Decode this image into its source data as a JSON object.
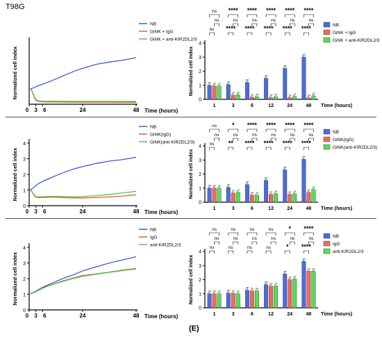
{
  "figure": {
    "cell_line_label": "T98G",
    "panel_label": "(E)"
  },
  "chart_data": [
    {
      "type": "line",
      "ylabel": "Normalized cell index",
      "xlabel": "Time (hours)",
      "xticks": [
        "0",
        "3",
        "6",
        "24",
        "48"
      ],
      "xlim": [
        0,
        48
      ],
      "ylim": [
        0,
        4
      ],
      "yticks": [],
      "series": [
        {
          "name": "NB",
          "color": "#3b5bd6",
          "x": [
            0,
            1,
            2,
            3,
            4,
            6,
            10,
            15,
            20,
            24,
            30,
            36,
            42,
            48
          ],
          "y": [
            1.0,
            1.0,
            1.05,
            1.12,
            1.18,
            1.28,
            1.5,
            1.8,
            2.1,
            2.3,
            2.55,
            2.7,
            2.82,
            2.98
          ]
        },
        {
          "name": "GiNK + IgG",
          "color": "#e25a4a",
          "x": [
            0,
            1,
            2,
            3,
            4,
            6,
            10,
            24,
            48
          ],
          "y": [
            1.0,
            0.95,
            0.55,
            0.25,
            0.18,
            0.15,
            0.14,
            0.13,
            0.12
          ]
        },
        {
          "name": "GiNK + anti-KIR2DL2/3",
          "color": "#44cc44",
          "x": [
            0,
            1,
            2,
            3,
            4,
            6,
            10,
            24,
            48
          ],
          "y": [
            1.0,
            0.95,
            0.6,
            0.3,
            0.22,
            0.2,
            0.19,
            0.18,
            0.18
          ]
        }
      ]
    },
    {
      "type": "bar",
      "ylabel": "Normalized cell index",
      "xlabel": "Time (hours)",
      "ylim": [
        0,
        4
      ],
      "yticks": [
        "0",
        "1",
        "2",
        "3",
        "4"
      ],
      "categories": [
        "1",
        "3",
        "6",
        "12",
        "24",
        "48"
      ],
      "series": [
        {
          "name": "NB",
          "color": "#4a6be0",
          "values": [
            1.0,
            1.05,
            1.2,
            1.5,
            2.2,
            3.0
          ]
        },
        {
          "name": "GiNK + IgG",
          "color": "#f06a5a",
          "values": [
            0.95,
            0.3,
            0.15,
            0.12,
            0.12,
            0.12
          ]
        },
        {
          "name": "GiNK + anti-KIR2DL2/3",
          "color": "#55dd55",
          "values": [
            0.95,
            0.32,
            0.18,
            0.18,
            0.2,
            0.25
          ]
        }
      ],
      "significance": {
        "top_row": [
          "ns",
          "****",
          "****",
          "****",
          "****",
          "****"
        ],
        "mid_row": [
          "ns",
          "ns",
          "ns",
          "ns",
          "ns",
          "ns"
        ],
        "bottom_row": [
          "ns",
          "****",
          "****",
          "****",
          "****",
          "****"
        ]
      }
    },
    {
      "type": "line",
      "ylabel": "Normalized cell index",
      "xlabel": "Time (hours)",
      "xticks": [
        "0",
        "3",
        "6",
        "24",
        "48"
      ],
      "xlim": [
        0,
        48
      ],
      "ylim": [
        0,
        4
      ],
      "yticks": [
        "0",
        "1",
        "2",
        "3",
        "4"
      ],
      "series": [
        {
          "name": "NB",
          "color": "#3b5bd6",
          "x": [
            0,
            1,
            2,
            3,
            4,
            6,
            10,
            15,
            20,
            24,
            30,
            36,
            42,
            48
          ],
          "y": [
            1.0,
            1.05,
            1.15,
            1.28,
            1.4,
            1.55,
            1.8,
            2.1,
            2.35,
            2.5,
            2.7,
            2.85,
            2.95,
            3.1
          ]
        },
        {
          "name": "GiNK(IgG)",
          "color": "#e25a4a",
          "x": [
            0,
            1,
            2,
            3,
            4,
            6,
            10,
            15,
            20,
            24,
            30,
            36,
            42,
            48
          ],
          "y": [
            1.0,
            0.95,
            0.7,
            0.55,
            0.52,
            0.52,
            0.55,
            0.52,
            0.5,
            0.5,
            0.52,
            0.56,
            0.62,
            0.7
          ]
        },
        {
          "name": "GiNK(anti-KIR2DL2/3)",
          "color": "#44cc44",
          "x": [
            0,
            1,
            2,
            3,
            4,
            6,
            10,
            15,
            20,
            24,
            30,
            36,
            42,
            48
          ],
          "y": [
            1.0,
            0.95,
            0.72,
            0.58,
            0.56,
            0.57,
            0.6,
            0.58,
            0.57,
            0.58,
            0.64,
            0.72,
            0.82,
            0.92
          ]
        }
      ]
    },
    {
      "type": "bar",
      "ylabel": "Normalized cell index",
      "xlabel": "Time (hours)",
      "ylim": [
        0,
        4
      ],
      "yticks": [
        "0",
        "1",
        "2",
        "3",
        "4"
      ],
      "categories": [
        "1",
        "3",
        "6",
        "12",
        "24",
        "48"
      ],
      "series": [
        {
          "name": "NB",
          "color": "#4a6be0",
          "values": [
            1.0,
            1.05,
            1.25,
            1.55,
            2.3,
            3.05
          ]
        },
        {
          "name": "GiNK(IgG)",
          "color": "#f06a5a",
          "values": [
            1.0,
            0.65,
            0.5,
            0.55,
            0.55,
            0.7
          ]
        },
        {
          "name": "GiNK(anti-KIR2DL2/3)",
          "color": "#55dd55",
          "values": [
            1.0,
            0.7,
            0.5,
            0.6,
            0.6,
            0.9
          ]
        }
      ],
      "significance": {
        "top_row": [
          "ns",
          "*",
          "****",
          "****",
          "****",
          "****"
        ],
        "mid_row": [
          "ns",
          "ns",
          "ns",
          "ns",
          "ns",
          "ns"
        ],
        "bottom_row": [
          "ns",
          "**",
          "****",
          "****",
          "****",
          "****"
        ]
      }
    },
    {
      "type": "line",
      "ylabel": "Normalized cell index",
      "xlabel": "Time (hours)",
      "xticks": [
        "0",
        "3",
        "6",
        "24",
        "48"
      ],
      "xlim": [
        0,
        48
      ],
      "ylim": [
        0,
        4
      ],
      "yticks": [
        "0",
        "1",
        "2",
        "3",
        "4"
      ],
      "series": [
        {
          "name": "NB",
          "color": "#3b5bd6",
          "x": [
            0,
            3,
            6,
            10,
            15,
            20,
            24,
            30,
            36,
            42,
            48
          ],
          "y": [
            1.0,
            1.2,
            1.45,
            1.7,
            2.0,
            2.25,
            2.5,
            2.75,
            3.0,
            3.2,
            3.4
          ]
        },
        {
          "name": "IgG",
          "color": "#e25a4a",
          "x": [
            0,
            3,
            6,
            10,
            15,
            20,
            24,
            30,
            36,
            42,
            48
          ],
          "y": [
            1.0,
            1.18,
            1.4,
            1.62,
            1.85,
            2.05,
            2.2,
            2.3,
            2.42,
            2.55,
            2.65
          ]
        },
        {
          "name": "anti-KIR2DL2/3",
          "color": "#44cc44",
          "x": [
            0,
            3,
            6,
            10,
            15,
            20,
            24,
            30,
            36,
            42,
            48
          ],
          "y": [
            1.0,
            1.16,
            1.38,
            1.6,
            1.82,
            2.02,
            2.15,
            2.28,
            2.4,
            2.52,
            2.62
          ]
        }
      ]
    },
    {
      "type": "bar",
      "ylabel": "Normalized cell index",
      "xlabel": "Time (hours)",
      "ylim": [
        0,
        4
      ],
      "yticks": [
        "0",
        "1",
        "2",
        "3",
        "4"
      ],
      "categories": [
        "1",
        "3",
        "6",
        "12",
        "24",
        "48"
      ],
      "series": [
        {
          "name": "NB",
          "color": "#4a6be0",
          "values": [
            1.0,
            1.05,
            1.25,
            1.65,
            2.4,
            3.3
          ]
        },
        {
          "name": "IgG",
          "color": "#f06a5a",
          "values": [
            1.0,
            1.02,
            1.2,
            1.55,
            2.0,
            2.6
          ]
        },
        {
          "name": "anti-KIR2DL2/3",
          "color": "#55dd55",
          "values": [
            1.0,
            1.0,
            1.2,
            1.55,
            2.05,
            2.6
          ]
        }
      ],
      "significance": {
        "top_row": [
          "ns",
          "ns",
          "ns",
          "ns",
          "*",
          "****"
        ],
        "mid_row": [
          "ns",
          "ns",
          "ns",
          "ns",
          "ns",
          "ns"
        ],
        "bottom_row": [
          "ns",
          "ns",
          "ns",
          "ns",
          "*",
          "****"
        ]
      }
    }
  ]
}
